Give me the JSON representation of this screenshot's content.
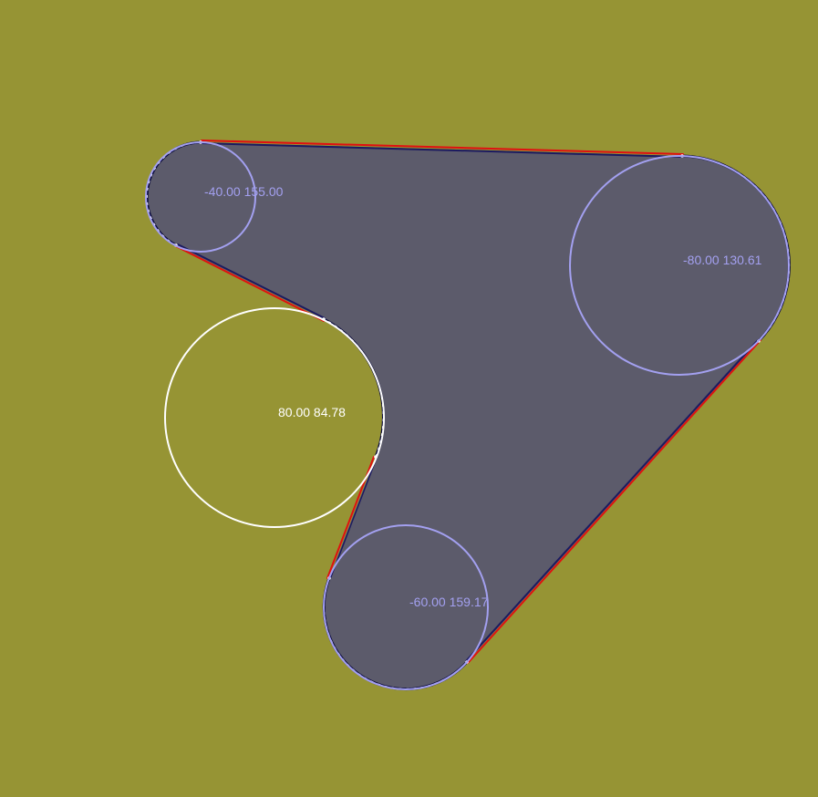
{
  "colors": {
    "background": "#969434",
    "shape_fill": "#5c5b6b",
    "tangent_red": "#e01010",
    "tangent_navy": "#1c1a60",
    "circle_lavender": "#a3a0f0",
    "circle_white": "#ffffff",
    "outline_dark": "#0a0a3c"
  },
  "circles": [
    {
      "id": "c1",
      "label": "-40.00 155.00",
      "kind": "convex"
    },
    {
      "id": "c2",
      "label": "-80.00 130.61",
      "kind": "convex"
    },
    {
      "id": "c3",
      "label": "-60.00 159.17",
      "kind": "convex"
    },
    {
      "id": "c4",
      "label": "80.00 84.78",
      "kind": "concave"
    }
  ]
}
